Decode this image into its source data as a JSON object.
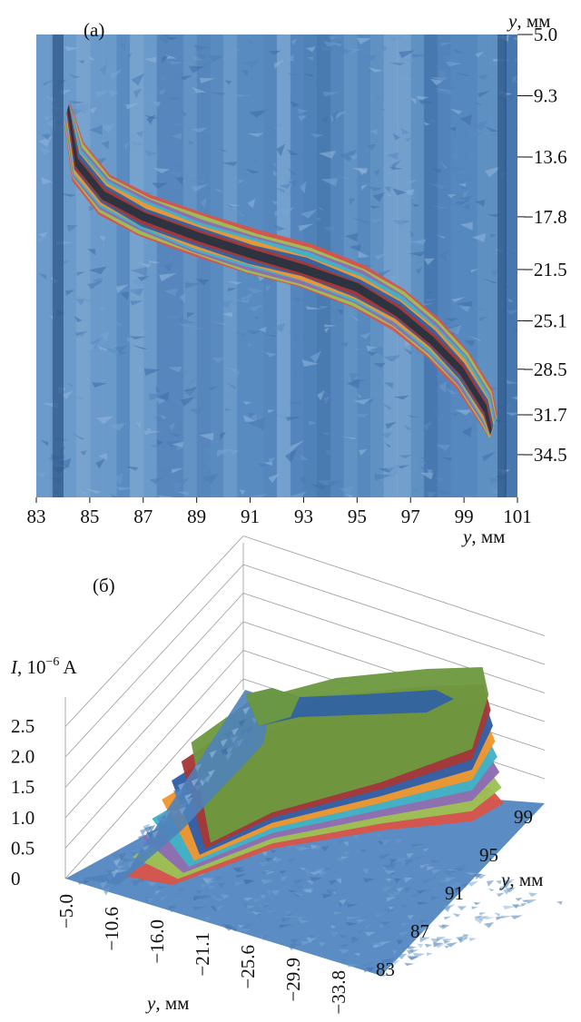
{
  "chart_data": [
    {
      "panel_label": "(a)",
      "type": "heatmap",
      "xlabel": "y, мм",
      "ylabel": "y, мм",
      "x_ticks": [
        "83",
        "85",
        "87",
        "89",
        "91",
        "93",
        "95",
        "97",
        "99",
        "101"
      ],
      "y_ticks": [
        "−5.0",
        "−9.3",
        "−13.6",
        "−17.8",
        "−21.5",
        "−25.1",
        "−28.5",
        "−31.7",
        "−34.5"
      ],
      "x_values": [
        83,
        85,
        87,
        89,
        91,
        93,
        95,
        97,
        99,
        101
      ],
      "y_values": [
        -5.0,
        -9.3,
        -13.6,
        -17.8,
        -21.5,
        -25.1,
        -28.5,
        -31.7,
        -34.5
      ],
      "xlim": [
        83,
        101
      ],
      "ylim": [
        -37.5,
        -5.0
      ],
      "ridge_crest": [
        {
          "x": 84.2,
          "y": -10.0
        },
        {
          "x": 84.5,
          "y": -14.0
        },
        {
          "x": 85.5,
          "y": -16.3
        },
        {
          "x": 87.0,
          "y": -17.8
        },
        {
          "x": 89.0,
          "y": -19.2
        },
        {
          "x": 91.0,
          "y": -20.4
        },
        {
          "x": 93.0,
          "y": -21.4
        },
        {
          "x": 95.0,
          "y": -22.8
        },
        {
          "x": 96.5,
          "y": -24.4
        },
        {
          "x": 97.8,
          "y": -26.4
        },
        {
          "x": 98.9,
          "y": -28.6
        },
        {
          "x": 99.8,
          "y": -31.3
        },
        {
          "x": 100.0,
          "y": -33.0
        }
      ],
      "color_bands": [
        "#d9534a",
        "#9bc255",
        "#8e6bb3",
        "#3fb3c6",
        "#f0962e",
        "#2f5fa7",
        "#a73737",
        "#27343f"
      ]
    },
    {
      "panel_label": "(б)",
      "type": "surface",
      "zlabel": "I, 10⁻⁶ A",
      "z_ticks": [
        "0",
        "0.5",
        "1.0",
        "1.5",
        "2.0",
        "2.5"
      ],
      "z_values": [
        0,
        0.5,
        1.0,
        1.5,
        2.0,
        2.5
      ],
      "x_axis_label": "y, мм",
      "x_ticks": [
        "−5.0",
        "−10.6",
        "−16.0",
        "−21.1",
        "−25.6",
        "−29.9",
        "−33.8"
      ],
      "y_axis_label": "y, мм",
      "y_ticks": [
        "83",
        "87",
        "91",
        "95",
        "99"
      ],
      "peak_current": 2.5,
      "color_bands": [
        "#d9534a",
        "#9bc255",
        "#8e6bb3",
        "#3fb3c6",
        "#f0962e",
        "#2f5fa7",
        "#a73737",
        "#6d9a3f"
      ]
    }
  ]
}
